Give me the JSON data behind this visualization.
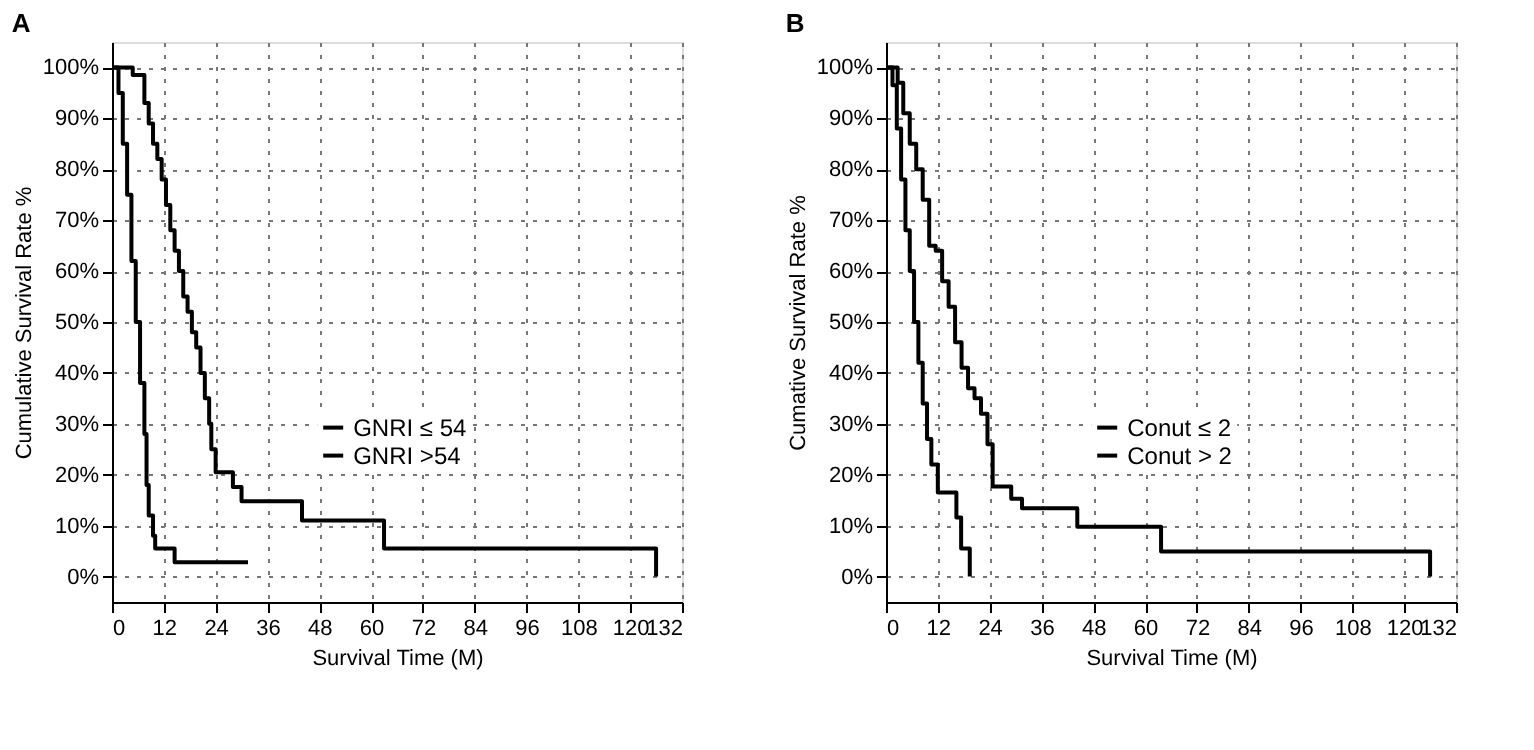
{
  "chart_data": [
    {
      "type": "step",
      "title": "A",
      "xlabel": "Survival Time (M)",
      "ylabel": "Cumulative Survival Rate %",
      "xlim": [
        0,
        132
      ],
      "xticks": [
        0,
        12,
        24,
        36,
        48,
        60,
        72,
        84,
        96,
        108,
        120,
        132
      ],
      "ylim": [
        -5,
        105
      ],
      "yticks": [
        {
          "value": 0,
          "label": "0%"
        },
        {
          "value": 10,
          "label": "10%"
        },
        {
          "value": 20,
          "label": "20%"
        },
        {
          "value": 30,
          "label": "30%"
        },
        {
          "value": 40,
          "label": "40%"
        },
        {
          "value": 50,
          "label": "50%"
        },
        {
          "value": 60,
          "label": "60%"
        },
        {
          "value": 70,
          "label": "70%"
        },
        {
          "value": 80,
          "label": "80%"
        },
        {
          "value": 90,
          "label": "90%"
        },
        {
          "value": 100,
          "label": "100%"
        }
      ],
      "grid": true,
      "legend": "right",
      "line_style": "solid",
      "marker": "none",
      "series": [
        {
          "name": "GNRI ≤ 54",
          "color": "#000000",
          "x": [
            0,
            1.5,
            2.5,
            3.5,
            4.5,
            5.5,
            6.5,
            7.5,
            8,
            8.5,
            9.5,
            10,
            14.5,
            31.5
          ],
          "values": [
            100,
            95,
            85,
            75,
            62,
            50,
            38,
            28,
            18,
            12,
            8,
            5.5,
            2.8,
            2.8
          ]
        },
        {
          "name": "GNRI >54",
          "color": "#000000",
          "x": [
            0,
            4.8,
            7.5,
            8.5,
            9.5,
            10.5,
            11.5,
            12.5,
            13.5,
            14.5,
            15.5,
            16.5,
            17.5,
            18.5,
            19.5,
            20.5,
            21.5,
            22.5,
            23,
            24,
            28,
            30,
            44,
            63,
            126
          ],
          "values": [
            100,
            98.5,
            93,
            89,
            85,
            82,
            78,
            73,
            68,
            64,
            60,
            55,
            52,
            48,
            45,
            40,
            35,
            30,
            25,
            20.5,
            17.6,
            14.8,
            11,
            5.5,
            0
          ]
        }
      ]
    },
    {
      "type": "step",
      "title": "B",
      "xlabel": "Survival Time (M)",
      "ylabel": "Cumative Survival Rate %",
      "xlim": [
        0,
        132
      ],
      "xticks": [
        0,
        12,
        24,
        36,
        48,
        60,
        72,
        84,
        96,
        108,
        120,
        132
      ],
      "ylim": [
        -5,
        105
      ],
      "yticks": [
        {
          "value": 0,
          "label": "0%"
        },
        {
          "value": 10,
          "label": "10%"
        },
        {
          "value": 20,
          "label": "20%"
        },
        {
          "value": 30,
          "label": "30%"
        },
        {
          "value": 40,
          "label": "40%"
        },
        {
          "value": 50,
          "label": "50%"
        },
        {
          "value": 60,
          "label": "60%"
        },
        {
          "value": 70,
          "label": "70%"
        },
        {
          "value": 80,
          "label": "80%"
        },
        {
          "value": 90,
          "label": "90%"
        },
        {
          "value": 100,
          "label": "100%"
        }
      ],
      "grid": true,
      "legend": "right",
      "line_style": "solid",
      "marker": "none",
      "series": [
        {
          "name": "Conut ≤ 2",
          "color": "#000000",
          "x": [
            0,
            2.7,
            4,
            5.5,
            7,
            8.5,
            10,
            11.5,
            13,
            14.5,
            16,
            17.5,
            19,
            20.5,
            22,
            23.5,
            24.7,
            29,
            31.5,
            44.3,
            63.7,
            126
          ],
          "values": [
            100,
            97,
            91,
            85,
            80,
            74,
            65,
            64,
            58,
            53,
            46,
            41,
            37,
            35,
            32,
            26,
            17.7,
            15.3,
            13.4,
            9.8,
            4.9,
            0
          ]
        },
        {
          "name": "Conut > 2",
          "color": "#000000",
          "x": [
            0,
            1.5,
            2.5,
            3.5,
            4.5,
            5.5,
            6.5,
            7.5,
            8.5,
            9.5,
            10.5,
            12,
            16.3,
            17.4,
            19.4
          ],
          "values": [
            100,
            96.5,
            88,
            78,
            68,
            60,
            50,
            42,
            34,
            27,
            22,
            16.5,
            11.6,
            5.5,
            0
          ]
        }
      ]
    }
  ]
}
